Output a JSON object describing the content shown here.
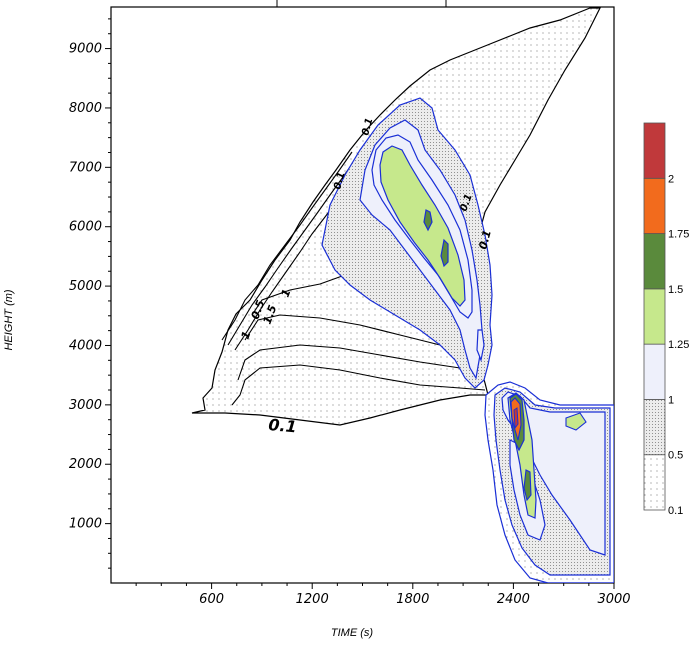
{
  "chart_data": {
    "type": "contour",
    "xlabel": "TIME (s)",
    "ylabel": "HEIGHT (m)",
    "xlim": [
      0,
      3000
    ],
    "ylim": [
      0,
      9700
    ],
    "x_ticks": [
      600,
      1200,
      1800,
      2400,
      3000
    ],
    "y_ticks": [
      1000,
      2000,
      3000,
      4000,
      5000,
      6000,
      7000,
      8000,
      9000
    ],
    "contour_labels": [
      "0.1",
      "1",
      "1.5",
      "0.5",
      "1",
      "0.1",
      "0.1",
      "0.1",
      "0.1"
    ],
    "colorbar": {
      "levels": [
        "0.1",
        "0.5",
        "1",
        "1.25",
        "1.5",
        "1.75",
        "2"
      ],
      "bands": [
        {
          "from": 0.1,
          "to": 0.5,
          "color": "#ffffff",
          "pattern": "sparse-dots"
        },
        {
          "from": 0.5,
          "to": 1,
          "color": "#e8e8e8",
          "pattern": "dense-dots"
        },
        {
          "from": 1,
          "to": 1.25,
          "color": "#eef0fb"
        },
        {
          "from": 1.25,
          "to": 1.5,
          "color": "#c6e88c"
        },
        {
          "from": 1.5,
          "to": 1.75,
          "color": "#5a8a3c"
        },
        {
          "from": 1.75,
          "to": 2,
          "color": "#f26b1d"
        },
        {
          "from": 2,
          "to": 2.25,
          "color": "#c0393b"
        }
      ]
    },
    "colors": {
      "outer_contour": "#000000",
      "inner_contour": "#1a2fd6"
    }
  }
}
